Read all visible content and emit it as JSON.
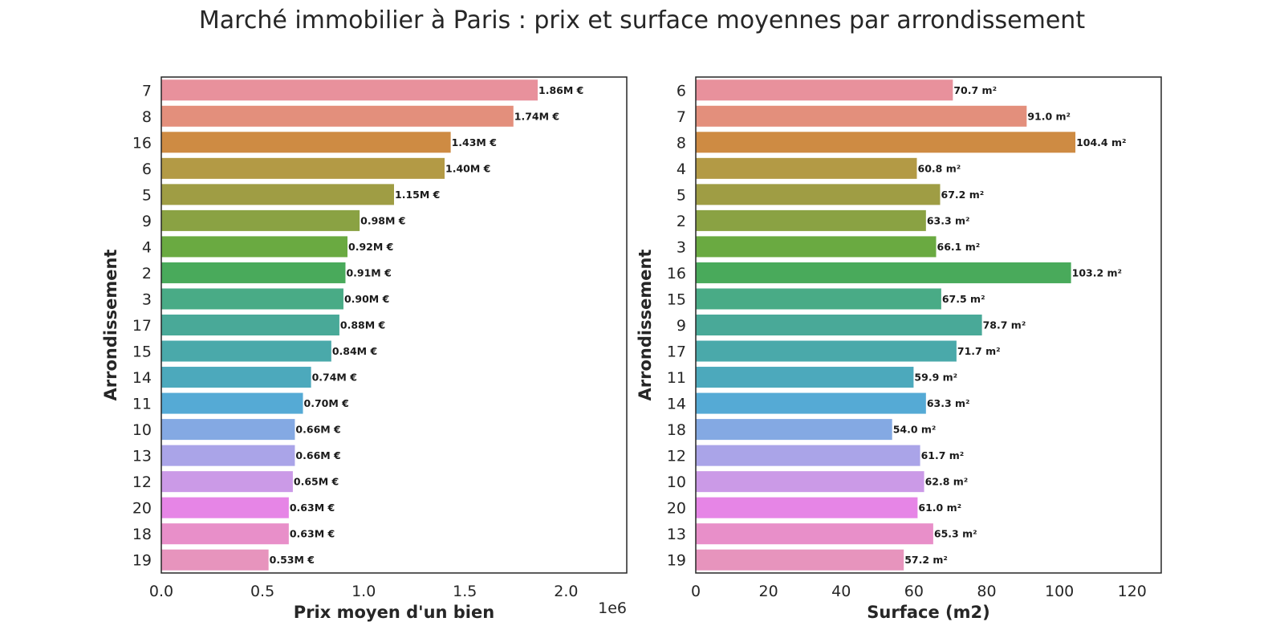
{
  "title": "Marché immobilier à Paris : prix et surface moyennes par arrondissement",
  "colors": [
    "#e8919c",
    "#e38f7c",
    "#ce8b43",
    "#b39a45",
    "#9f9d44",
    "#8aa243",
    "#6aaa41",
    "#49aa5b",
    "#49ab86",
    "#49a998",
    "#4aa9aa",
    "#4ca9bc",
    "#55aad5",
    "#84a9e3",
    "#aaa4e8",
    "#cb9ae7",
    "#e685e6",
    "#e88fc9",
    "#e794bd"
  ],
  "chart_data": [
    {
      "type": "bar",
      "orientation": "horizontal",
      "ylabel": "Arrondissement",
      "xlabel": "Prix moyen d'un bien",
      "xlim": [
        0,
        2300000
      ],
      "x_ticks": [
        0,
        500000,
        1000000,
        1500000,
        2000000
      ],
      "x_tick_labels": [
        "0.0",
        "0.5",
        "1.0",
        "1.5",
        "2.0"
      ],
      "offset_text": "1e6",
      "categories": [
        "7",
        "8",
        "16",
        "6",
        "5",
        "9",
        "4",
        "2",
        "3",
        "17",
        "15",
        "14",
        "11",
        "10",
        "13",
        "12",
        "20",
        "18",
        "19"
      ],
      "values": [
        1860000,
        1740000,
        1430000,
        1400000,
        1150000,
        980000,
        920000,
        910000,
        900000,
        880000,
        840000,
        740000,
        700000,
        660000,
        660000,
        650000,
        630000,
        630000,
        530000
      ],
      "labels": [
        "1.86M €",
        "1.74M €",
        "1.43M €",
        "1.40M €",
        "1.15M €",
        "0.98M €",
        "0.92M €",
        "0.91M €",
        "0.90M €",
        "0.88M €",
        "0.84M €",
        "0.74M €",
        "0.70M €",
        "0.66M €",
        "0.66M €",
        "0.65M €",
        "0.63M €",
        "0.63M €",
        "0.53M €"
      ],
      "grid": false
    },
    {
      "type": "bar",
      "orientation": "horizontal",
      "ylabel": "Arrondissement",
      "xlabel": "Surface (m2)",
      "xlim": [
        0,
        128
      ],
      "x_ticks": [
        0,
        20,
        40,
        60,
        80,
        100,
        120
      ],
      "x_tick_labels": [
        "0",
        "20",
        "40",
        "60",
        "80",
        "100",
        "120"
      ],
      "offset_text": "",
      "categories": [
        "6",
        "7",
        "8",
        "4",
        "5",
        "2",
        "3",
        "16",
        "15",
        "9",
        "17",
        "11",
        "14",
        "18",
        "12",
        "10",
        "20",
        "13",
        "19"
      ],
      "values": [
        70.7,
        91.0,
        104.4,
        60.8,
        67.2,
        63.3,
        66.1,
        103.2,
        67.5,
        78.7,
        71.7,
        59.9,
        63.3,
        54.0,
        61.7,
        62.8,
        61.0,
        65.3,
        57.2
      ],
      "labels": [
        "70.7 m²",
        "91.0 m²",
        "104.4 m²",
        "60.8 m²",
        "67.2 m²",
        "63.3 m²",
        "66.1 m²",
        "103.2 m²",
        "67.5 m²",
        "78.7 m²",
        "71.7 m²",
        "59.9 m²",
        "63.3 m²",
        "54.0 m²",
        "61.7 m²",
        "62.8 m²",
        "61.0 m²",
        "65.3 m²",
        "57.2 m²"
      ],
      "grid": false
    }
  ]
}
